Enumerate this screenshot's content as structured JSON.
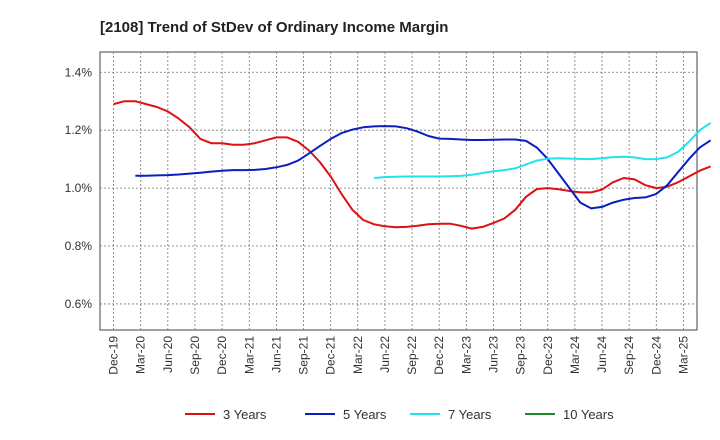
{
  "chart_data": {
    "type": "line",
    "title": "[2108]  Trend of StDev of Ordinary Income Margin",
    "xlabel": "",
    "ylabel": "",
    "x_ticks": [
      "Dec-19",
      "Mar-20",
      "Jun-20",
      "Sep-20",
      "Dec-20",
      "Mar-21",
      "Jun-21",
      "Sep-21",
      "Dec-21",
      "Mar-22",
      "Jun-22",
      "Sep-22",
      "Dec-22",
      "Mar-23",
      "Jun-23",
      "Sep-23",
      "Dec-23",
      "Mar-24",
      "Jun-24",
      "Sep-24",
      "Dec-24",
      "Mar-25"
    ],
    "y_ticks": [
      "0.6%",
      "0.8%",
      "1.0%",
      "1.2%",
      "1.4%"
    ],
    "y_tick_values": [
      0.6,
      0.8,
      1.0,
      1.2,
      1.4
    ],
    "ylim": [
      0.51,
      1.47
    ],
    "grid": true,
    "legend_position": "bottom",
    "series": [
      {
        "name": "3 Years",
        "color": "#dd1111",
        "values": [
          1.29,
          1.3,
          1.3,
          1.29,
          1.28,
          1.265,
          1.24,
          1.21,
          1.17,
          1.155,
          1.155,
          1.15,
          1.15,
          1.155,
          1.165,
          1.175,
          1.175,
          1.16,
          1.13,
          1.09,
          1.04,
          0.98,
          0.925,
          0.89,
          0.875,
          0.868,
          0.865,
          0.866,
          0.87,
          0.875,
          0.877,
          0.877,
          0.87,
          0.86,
          0.866,
          0.88,
          0.895,
          0.925,
          0.97,
          0.997,
          1.0,
          0.996,
          0.99,
          0.985,
          0.985,
          0.995,
          1.02,
          1.035,
          1.03,
          1.01,
          1.0,
          1.005,
          1.02,
          1.04,
          1.06,
          1.075
        ]
      },
      {
        "name": "5 Years",
        "color": "#0b1fbf",
        "values": [
          null,
          null,
          1.043,
          1.043,
          1.044,
          1.045,
          1.047,
          1.05,
          1.053,
          1.057,
          1.06,
          1.062,
          1.062,
          1.063,
          1.066,
          1.072,
          1.08,
          1.095,
          1.12,
          1.145,
          1.17,
          1.19,
          1.202,
          1.21,
          1.213,
          1.214,
          1.213,
          1.207,
          1.195,
          1.18,
          1.171,
          1.17,
          1.168,
          1.166,
          1.166,
          1.167,
          1.168,
          1.168,
          1.163,
          1.14,
          1.1,
          1.05,
          1.0,
          0.95,
          0.93,
          0.935,
          0.95,
          0.96,
          0.966,
          0.968,
          0.98,
          1.01,
          1.055,
          1.1,
          1.14,
          1.165
        ]
      },
      {
        "name": "7 Years",
        "color": "#22e2f0",
        "values": [
          null,
          null,
          null,
          null,
          null,
          null,
          null,
          null,
          null,
          null,
          null,
          null,
          null,
          null,
          null,
          null,
          null,
          null,
          null,
          null,
          null,
          null,
          null,
          null,
          1.035,
          1.038,
          1.039,
          1.04,
          1.04,
          1.04,
          1.04,
          1.041,
          1.042,
          1.046,
          1.052,
          1.058,
          1.062,
          1.068,
          1.082,
          1.095,
          1.102,
          1.103,
          1.102,
          1.101,
          1.1,
          1.103,
          1.107,
          1.108,
          1.106,
          1.1,
          1.1,
          1.106,
          1.125,
          1.16,
          1.2,
          1.225
        ]
      },
      {
        "name": "10 Years",
        "color": "#1f8a2a",
        "values": []
      }
    ]
  }
}
